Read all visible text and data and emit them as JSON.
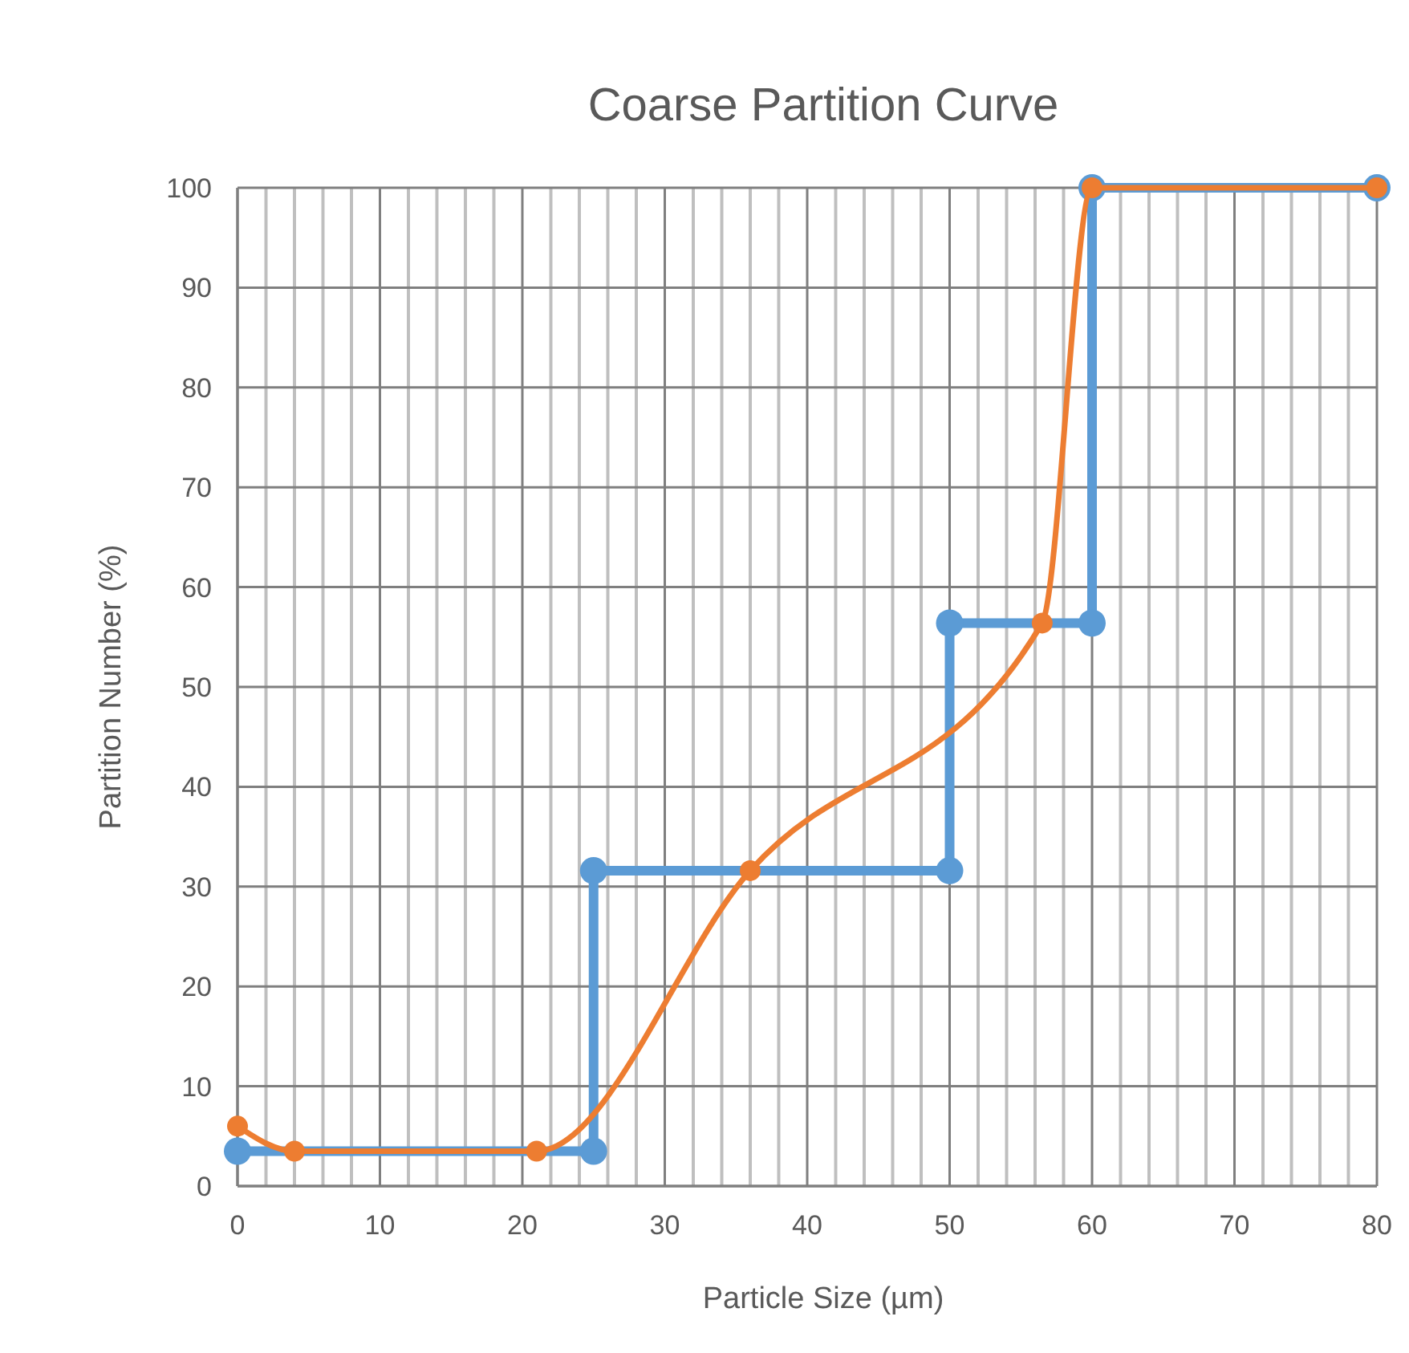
{
  "chart_data": {
    "type": "line",
    "title": "Coarse Partition Curve",
    "xlabel": "Particle Size (µm)",
    "ylabel": "Partition Number (%)",
    "xlim": [
      0,
      80
    ],
    "xticks": [
      0,
      {
        "value": 2,
        "label": null
      },
      {
        "value": 4,
        "label": null
      },
      {
        "value": 6,
        "label": null
      },
      {
        "value": 8,
        "label": null
      },
      10,
      {
        "value": 12,
        "label": null
      },
      {
        "value": 14,
        "label": null
      },
      {
        "value": 16,
        "label": null
      },
      {
        "value": 18,
        "label": null
      },
      20,
      {
        "value": 22,
        "label": null
      },
      {
        "value": 24,
        "label": null
      },
      {
        "value": 26,
        "label": null
      },
      {
        "value": 28,
        "label": null
      },
      30,
      {
        "value": 32,
        "label": null
      },
      {
        "value": 34,
        "label": null
      },
      {
        "value": 36,
        "label": null
      },
      {
        "value": 38,
        "label": null
      },
      40,
      {
        "value": 42,
        "label": null
      },
      {
        "value": 44,
        "label": null
      },
      {
        "value": 46,
        "label": null
      },
      {
        "value": 48,
        "label": null
      },
      50,
      {
        "value": 52,
        "label": null
      },
      {
        "value": 54,
        "label": null
      },
      {
        "value": 56,
        "label": null
      },
      {
        "value": 58,
        "label": null
      },
      60,
      {
        "value": 62,
        "label": null
      },
      {
        "value": 64,
        "label": null
      },
      {
        "value": 66,
        "label": null
      },
      {
        "value": 68,
        "label": null
      },
      70,
      {
        "value": 72,
        "label": null
      },
      {
        "value": 74,
        "label": null
      },
      {
        "value": 76,
        "label": null
      },
      {
        "value": 78,
        "label": null
      },
      80
    ],
    "ylim": [
      0,
      100
    ],
    "yticks": [
      0,
      10,
      20,
      30,
      40,
      50,
      60,
      70,
      80,
      90,
      100
    ],
    "grid": true,
    "marker": "circle",
    "line_style": "solid",
    "series": [
      {
        "color": "#5b9bd5",
        "x": [
          0,
          25,
          25,
          50,
          50,
          60,
          60,
          80
        ],
        "values": [
          3.5,
          3.5,
          31.6,
          31.6,
          56.4,
          56.4,
          100,
          100
        ]
      },
      {
        "color": "#ed7d31",
        "x": [
          0,
          4,
          21,
          36,
          56.5,
          60,
          80
        ],
        "values": [
          6,
          3.5,
          3.5,
          31.6,
          56.4,
          100,
          100
        ]
      }
    ]
  }
}
